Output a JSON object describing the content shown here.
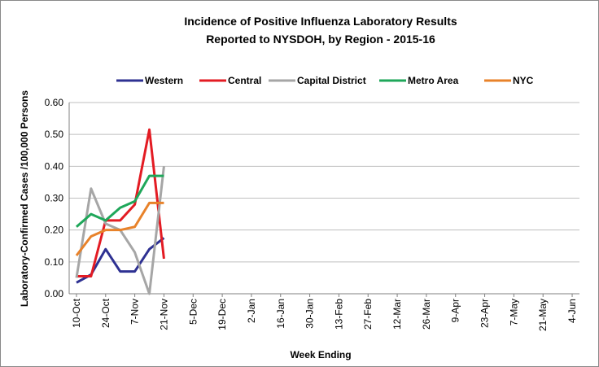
{
  "chart_data": {
    "type": "line",
    "title": [
      "Incidence of Positive Influenza Laboratory Results",
      "Reported to NYSDOH, by Region - 2015-16"
    ],
    "x_label": "Week Ending",
    "y_label": "Laboratory-Confirmed Cases /100,000 Persons",
    "categories": [
      "10-Oct",
      null,
      "24-Oct",
      null,
      "7-Nov",
      null,
      "21-Nov",
      null,
      "5-Dec",
      null,
      "19-Dec",
      null,
      "2-Jan",
      null,
      "16-Jan",
      null,
      "30-Jan",
      null,
      "13-Feb",
      null,
      "27-Feb",
      null,
      "12-Mar",
      null,
      "26-Mar",
      null,
      "9-Apr",
      null,
      "23-Apr",
      null,
      "7-May",
      null,
      "21-May",
      null,
      "4-Jun"
    ],
    "series": [
      {
        "name": "Western",
        "color": "#2e3192",
        "values": [
          0.035,
          0.06,
          0.14,
          0.07,
          0.07,
          0.14,
          0.175,
          null,
          null,
          null,
          null,
          null,
          null,
          null,
          null,
          null,
          null,
          null,
          null,
          null,
          null,
          null,
          null,
          null,
          null,
          null,
          null,
          null,
          null,
          null,
          null,
          null,
          null,
          null,
          null
        ]
      },
      {
        "name": "Central",
        "color": "#e31b23",
        "values": [
          0.055,
          0.055,
          0.23,
          0.23,
          0.28,
          0.515,
          0.11,
          null,
          null,
          null,
          null,
          null,
          null,
          null,
          null,
          null,
          null,
          null,
          null,
          null,
          null,
          null,
          null,
          null,
          null,
          null,
          null,
          null,
          null,
          null,
          null,
          null,
          null,
          null,
          null
        ]
      },
      {
        "name": "Capital District",
        "color": "#a6a6a6",
        "values": [
          0.05,
          0.33,
          0.22,
          0.2,
          0.13,
          0.0,
          0.4,
          null,
          null,
          null,
          null,
          null,
          null,
          null,
          null,
          null,
          null,
          null,
          null,
          null,
          null,
          null,
          null,
          null,
          null,
          null,
          null,
          null,
          null,
          null,
          null,
          null,
          null,
          null,
          null
        ]
      },
      {
        "name": "Metro Area",
        "color": "#1fa75a",
        "values": [
          0.21,
          0.25,
          0.23,
          0.27,
          0.29,
          0.37,
          0.37,
          null,
          null,
          null,
          null,
          null,
          null,
          null,
          null,
          null,
          null,
          null,
          null,
          null,
          null,
          null,
          null,
          null,
          null,
          null,
          null,
          null,
          null,
          null,
          null,
          null,
          null,
          null,
          null
        ]
      },
      {
        "name": "NYC",
        "color": "#e8822a",
        "values": [
          0.12,
          0.18,
          0.2,
          0.2,
          0.21,
          0.285,
          0.285,
          null,
          null,
          null,
          null,
          null,
          null,
          null,
          null,
          null,
          null,
          null,
          null,
          null,
          null,
          null,
          null,
          null,
          null,
          null,
          null,
          null,
          null,
          null,
          null,
          null,
          null,
          null,
          null
        ]
      }
    ],
    "ylim": [
      0,
      0.6
    ],
    "yticks": [
      {
        "value": 0,
        "label": "0.00"
      },
      {
        "value": 0.1,
        "label": "0.10"
      },
      {
        "value": 0.2,
        "label": "0.20"
      },
      {
        "value": 0.3,
        "label": "0.30"
      },
      {
        "value": 0.4,
        "label": "0.40"
      },
      {
        "value": 0.5,
        "label": "0.50"
      },
      {
        "value": 0.6,
        "label": "0.60"
      }
    ],
    "grid": true
  }
}
